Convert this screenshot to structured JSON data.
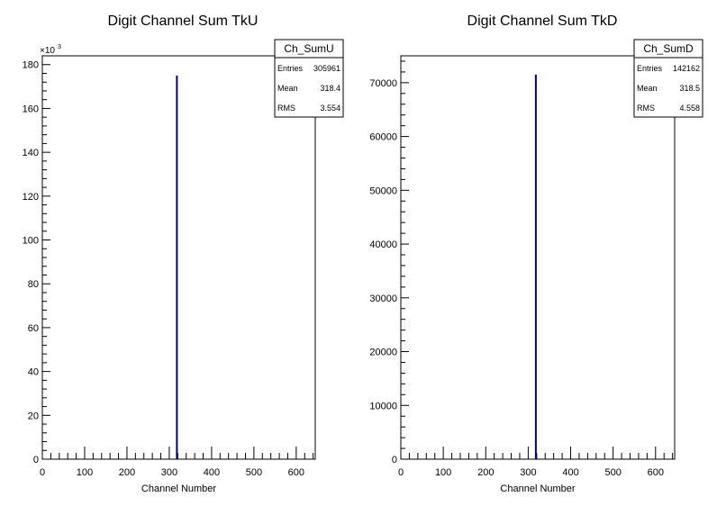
{
  "chart_data": [
    {
      "type": "bar",
      "title": "Digit Channel Sum TkU",
      "xlabel": "Channel Number",
      "ylabel": "",
      "xlim": [
        0,
        645
      ],
      "ylim": [
        0,
        184000
      ],
      "exponent_label": "×10",
      "exponent_power": "3",
      "y_divisor": 1000,
      "xticks": [
        0,
        100,
        200,
        300,
        400,
        500,
        600
      ],
      "yticks": [
        0,
        20000,
        40000,
        60000,
        80000,
        100000,
        120000,
        140000,
        160000,
        180000
      ],
      "bars": [
        {
          "x": 318,
          "value": 175000
        }
      ],
      "line_color": "#000080",
      "grid": false,
      "stats": {
        "name": "Ch_SumU",
        "rows": [
          {
            "label": "Entries",
            "value": "305961"
          },
          {
            "label": "Mean",
            "value": "318.4"
          },
          {
            "label": "RMS",
            "value": "3.554"
          }
        ]
      }
    },
    {
      "type": "bar",
      "title": "Digit Channel Sum TkD",
      "xlabel": "Channel Number",
      "ylabel": "",
      "xlim": [
        0,
        645
      ],
      "ylim": [
        0,
        75000
      ],
      "exponent_label": "",
      "exponent_power": "",
      "y_divisor": 1,
      "xticks": [
        0,
        100,
        200,
        300,
        400,
        500,
        600
      ],
      "yticks": [
        0,
        10000,
        20000,
        30000,
        40000,
        50000,
        60000,
        70000
      ],
      "bars": [
        {
          "x": 318,
          "value": 71500
        }
      ],
      "line_color": "#000080",
      "grid": false,
      "stats": {
        "name": "Ch_SumD",
        "rows": [
          {
            "label": "Entries",
            "value": "142162"
          },
          {
            "label": "Mean",
            "value": "318.5"
          },
          {
            "label": "RMS",
            "value": "4.558"
          }
        ]
      }
    }
  ]
}
